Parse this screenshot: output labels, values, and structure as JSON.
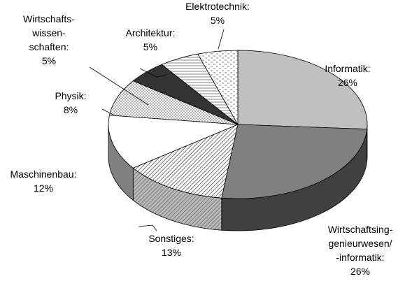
{
  "chart_data": {
    "type": "pie3d",
    "categories": [
      [
        "Informatik:"
      ],
      [
        "Wirtschaftsing-",
        "genieurwesen/",
        "-informatik:"
      ],
      [
        "Sonstiges:"
      ],
      [
        "Maschinenbau:"
      ],
      [
        "Physik:"
      ],
      [
        "Wirtschafts-",
        "wissen-",
        "schaften:"
      ],
      [
        "Architektur:"
      ],
      [
        "Elektrotechnik:"
      ]
    ],
    "values": [
      26,
      26,
      13,
      12,
      8,
      5,
      5,
      5
    ],
    "value_labels": [
      "26%",
      "26%",
      "13%",
      "12%",
      "8%",
      "5%",
      "5%",
      "5%"
    ],
    "colors": [
      "#c0c0c0",
      "#808080",
      "#ffffff",
      "#ffffff",
      "#ffffff",
      "#333333",
      "#ffffff",
      "#ffffff"
    ],
    "patterns": [
      null,
      null,
      "diagonal",
      null,
      "dots",
      null,
      "horizontal",
      "dashes"
    ]
  }
}
